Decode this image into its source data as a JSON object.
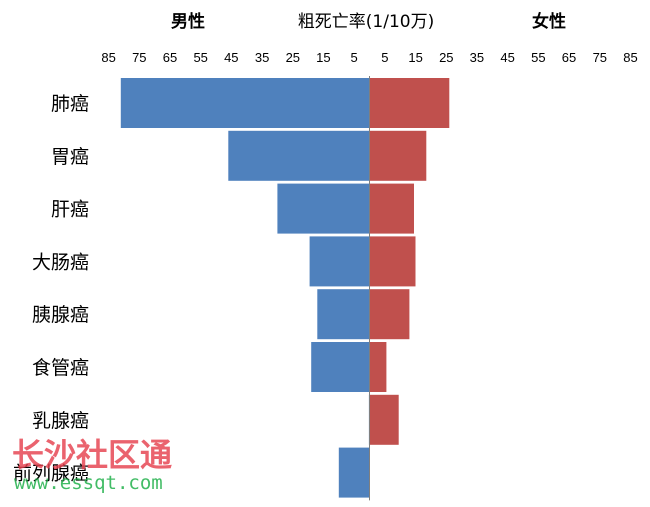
{
  "chart_data": {
    "type": "bar",
    "orientation": "horizontal-butterfly",
    "title": "粗死亡率(1/10万)",
    "left_label": "男性",
    "right_label": "女性",
    "categories": [
      "肺癌",
      "胃癌",
      "肝癌",
      "大肠癌",
      "胰腺癌",
      "食管癌",
      "乳腺癌",
      "前列腺癌"
    ],
    "series": [
      {
        "name": "男性",
        "values": [
          81,
          46,
          30,
          19.5,
          17,
          19,
          0.2,
          10
        ]
      },
      {
        "name": "女性",
        "values": [
          26,
          18.5,
          14.5,
          15,
          13,
          5.5,
          9.5,
          0
        ]
      }
    ],
    "xlim": [
      0,
      85
    ],
    "ticks": [
      85,
      75,
      65,
      55,
      45,
      35,
      25,
      15,
      5
    ],
    "colors": {
      "male": "#4f81bd",
      "female": "#c0504d",
      "axis": "#7f7f7f"
    },
    "grid": false
  },
  "watermark": {
    "text": "长沙社区通",
    "url": "www.essqt.com"
  }
}
